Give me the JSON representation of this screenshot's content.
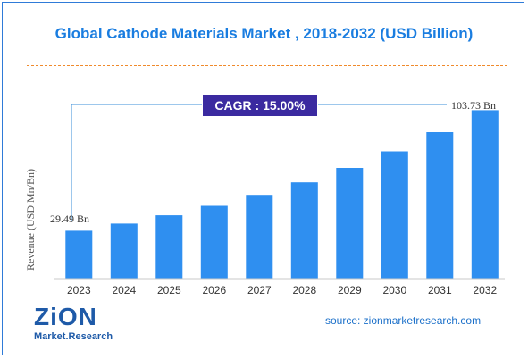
{
  "title": "Global Cathode Materials Market , 2018-2032 (USD Billion)",
  "source": "source: zionmarketresearch.com",
  "logo": {
    "word": "ZiON",
    "subtitle": "Market.Research"
  },
  "cagr_label": "CAGR : 15.00%",
  "colors": {
    "bar": "#2f8ff0",
    "title": "#1a7de0",
    "cagr_bg": "#3b2aa0",
    "accent": "#f08a2c"
  },
  "chart_data": {
    "type": "bar",
    "title": "Global Cathode Materials Market , 2018-2032 (USD Billion)",
    "ylabel": "Revenue (USD Mn/Bn)",
    "xlabel": "",
    "categories": [
      "2023",
      "2024",
      "2025",
      "2026",
      "2027",
      "2028",
      "2029",
      "2030",
      "2031",
      "2032"
    ],
    "values": [
      29.49,
      33.9,
      39.0,
      44.8,
      51.6,
      59.3,
      68.2,
      78.4,
      90.2,
      103.73
    ],
    "ylim": [
      0,
      110
    ],
    "data_labels": {
      "first": "29.49 Bn",
      "last": "103.73 Bn"
    },
    "grid": false
  }
}
